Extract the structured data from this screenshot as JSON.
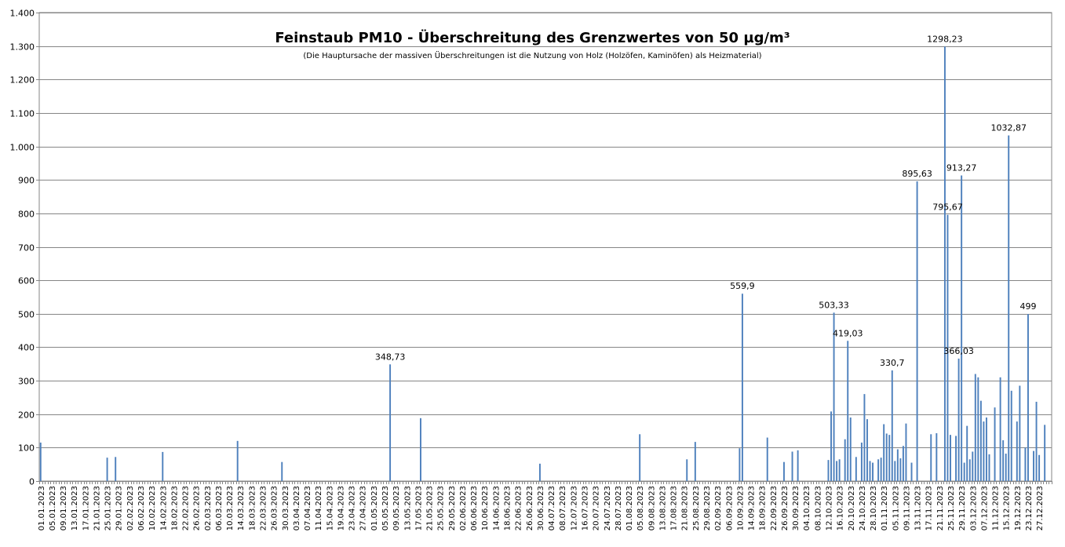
{
  "chart_data": {
    "type": "bar",
    "title": "Feinstaub PM10 - Überschreitung des Grenzwertes von 50 µg/m³",
    "subtitle": "(Die Hauptursache der massiven Überschreitungen ist die Nutzung von Holz (Holzöfen, Kaminöfen) als Heizmaterial)",
    "xlabel": "",
    "ylabel": "",
    "ylim": [
      0,
      1400
    ],
    "yticks": [
      0,
      100,
      200,
      300,
      400,
      500,
      600,
      700,
      800,
      900,
      1000,
      1100,
      1200,
      1300,
      1400
    ],
    "ytick_labels": [
      "0",
      "100",
      "200",
      "300",
      "400",
      "500",
      "600",
      "700",
      "800",
      "900",
      "1.000",
      "1.100",
      "1.200",
      "1.300",
      "1.400"
    ],
    "grid": true,
    "legend": "none",
    "bar_color": "#4F81BD",
    "x_start": "01.01.2023",
    "x_end": "31.12.2023",
    "x_tick_labels": [
      "01.01.2023",
      "05.01.2023",
      "09.01.2023",
      "13.01.2023",
      "17.01.2023",
      "21.01.2023",
      "25.01.2023",
      "29.01.2023",
      "02.02.2023",
      "06.02.2023",
      "10.02.2023",
      "14.02.2023",
      "18.02.2023",
      "22.02.2023",
      "26.02.2023",
      "02.03.2023",
      "06.03.2023",
      "10.03.2023",
      "14.03.2023",
      "18.03.2023",
      "22.03.2023",
      "26.03.2023",
      "30.03.2023",
      "03.04.2023",
      "07.04.2023",
      "11.04.2023",
      "15.04.2023",
      "19.04.2023",
      "23.04.2023",
      "27.04.2023",
      "01.05.2023",
      "05.05.2023",
      "09.05.2023",
      "13.05.2023",
      "17.05.2023",
      "21.05.2023",
      "25.05.2023",
      "29.05.2023",
      "02.06.2023",
      "06.06.2023",
      "10.06.2023",
      "14.06.2023",
      "18.06.2023",
      "22.06.2023",
      "26.06.2023",
      "30.06.2023",
      "04.07.2023",
      "08.07.2023",
      "12.07.2023",
      "16.07.2023",
      "20.07.2023",
      "24.07.2023",
      "28.07.2023",
      "01.08.2023",
      "05.08.2023",
      "09.08.2023",
      "13.08.2023",
      "17.08.2023",
      "21.08.2023",
      "25.08.2023",
      "29.08.2023",
      "02.09.2023",
      "06.09.2023",
      "10.09.2023",
      "14.09.2023",
      "18.09.2023",
      "22.09.2023",
      "26.09.2023",
      "30.09.2023",
      "04.10.2023",
      "08.10.2023",
      "12.10.2023",
      "16.10.2023",
      "20.10.2023",
      "24.10.2023",
      "28.10.2023",
      "01.11.2023",
      "05.11.2023",
      "09.11.2023",
      "13.11.2023",
      "17.11.2023",
      "21.11.2023",
      "25.11.2023",
      "29.11.2023",
      "03.12.2023",
      "07.12.2023",
      "11.12.2023",
      "15.12.2023",
      "19.12.2023",
      "23.12.2023",
      "27.12.2023"
    ],
    "points": [
      {
        "x": "01.01.2023",
        "y": 115
      },
      {
        "x": "25.01.2023",
        "y": 70
      },
      {
        "x": "28.01.2023",
        "y": 72
      },
      {
        "x": "14.02.2023",
        "y": 87
      },
      {
        "x": "13.03.2023",
        "y": 120
      },
      {
        "x": "29.03.2023",
        "y": 57
      },
      {
        "x": "07.05.2023",
        "y": 348.73,
        "label": "348,73"
      },
      {
        "x": "18.05.2023",
        "y": 188
      },
      {
        "x": "30.06.2023",
        "y": 52
      },
      {
        "x": "05.08.2023",
        "y": 140
      },
      {
        "x": "22.08.2023",
        "y": 65
      },
      {
        "x": "25.08.2023",
        "y": 117
      },
      {
        "x": "10.09.2023",
        "y": 98
      },
      {
        "x": "11.09.2023",
        "y": 559.9,
        "label": "559,9"
      },
      {
        "x": "20.09.2023",
        "y": 130
      },
      {
        "x": "26.09.2023",
        "y": 57
      },
      {
        "x": "29.09.2023",
        "y": 88
      },
      {
        "x": "01.10.2023",
        "y": 92
      },
      {
        "x": "12.10.2023",
        "y": 63
      },
      {
        "x": "13.10.2023",
        "y": 208
      },
      {
        "x": "14.10.2023",
        "y": 503.33,
        "label": "503,33"
      },
      {
        "x": "15.10.2023",
        "y": 60
      },
      {
        "x": "16.10.2023",
        "y": 65
      },
      {
        "x": "18.10.2023",
        "y": 125
      },
      {
        "x": "19.10.2023",
        "y": 419.03,
        "label": "419,03"
      },
      {
        "x": "20.10.2023",
        "y": 190
      },
      {
        "x": "22.10.2023",
        "y": 72
      },
      {
        "x": "24.10.2023",
        "y": 115
      },
      {
        "x": "25.10.2023",
        "y": 260
      },
      {
        "x": "26.10.2023",
        "y": 185
      },
      {
        "x": "27.10.2023",
        "y": 60
      },
      {
        "x": "28.10.2023",
        "y": 55
      },
      {
        "x": "30.10.2023",
        "y": 65
      },
      {
        "x": "31.10.2023",
        "y": 70
      },
      {
        "x": "01.11.2023",
        "y": 170
      },
      {
        "x": "02.11.2023",
        "y": 142
      },
      {
        "x": "03.11.2023",
        "y": 138
      },
      {
        "x": "04.11.2023",
        "y": 330.7,
        "label": "330,7"
      },
      {
        "x": "05.11.2023",
        "y": 60
      },
      {
        "x": "06.11.2023",
        "y": 95
      },
      {
        "x": "07.11.2023",
        "y": 68
      },
      {
        "x": "08.11.2023",
        "y": 105
      },
      {
        "x": "09.11.2023",
        "y": 172
      },
      {
        "x": "11.11.2023",
        "y": 55
      },
      {
        "x": "13.11.2023",
        "y": 895.63,
        "label": "895,63"
      },
      {
        "x": "18.11.2023",
        "y": 140
      },
      {
        "x": "20.11.2023",
        "y": 143
      },
      {
        "x": "23.11.2023",
        "y": 1298.23,
        "label": "1298,23"
      },
      {
        "x": "24.11.2023",
        "y": 795.67,
        "label": "795,67"
      },
      {
        "x": "25.11.2023",
        "y": 138
      },
      {
        "x": "27.11.2023",
        "y": 135
      },
      {
        "x": "28.11.2023",
        "y": 366.03,
        "label": "366,03"
      },
      {
        "x": "29.11.2023",
        "y": 913.27,
        "label": "913,27"
      },
      {
        "x": "30.11.2023",
        "y": 55
      },
      {
        "x": "01.12.2023",
        "y": 165
      },
      {
        "x": "02.12.2023",
        "y": 65
      },
      {
        "x": "03.12.2023",
        "y": 88
      },
      {
        "x": "04.12.2023",
        "y": 320
      },
      {
        "x": "05.12.2023",
        "y": 310
      },
      {
        "x": "06.12.2023",
        "y": 240
      },
      {
        "x": "07.12.2023",
        "y": 178
      },
      {
        "x": "08.12.2023",
        "y": 190
      },
      {
        "x": "09.12.2023",
        "y": 80
      },
      {
        "x": "11.12.2023",
        "y": 220
      },
      {
        "x": "13.12.2023",
        "y": 310
      },
      {
        "x": "14.12.2023",
        "y": 122
      },
      {
        "x": "15.12.2023",
        "y": 82
      },
      {
        "x": "16.12.2023",
        "y": 1032.87,
        "label": "1032,87"
      },
      {
        "x": "17.12.2023",
        "y": 270
      },
      {
        "x": "19.12.2023",
        "y": 178
      },
      {
        "x": "20.12.2023",
        "y": 285
      },
      {
        "x": "22.12.2023",
        "y": 100
      },
      {
        "x": "23.12.2023",
        "y": 499,
        "label": "499"
      },
      {
        "x": "25.12.2023",
        "y": 90
      },
      {
        "x": "26.12.2023",
        "y": 237
      },
      {
        "x": "27.12.2023",
        "y": 78
      },
      {
        "x": "29.12.2023",
        "y": 168
      }
    ]
  }
}
